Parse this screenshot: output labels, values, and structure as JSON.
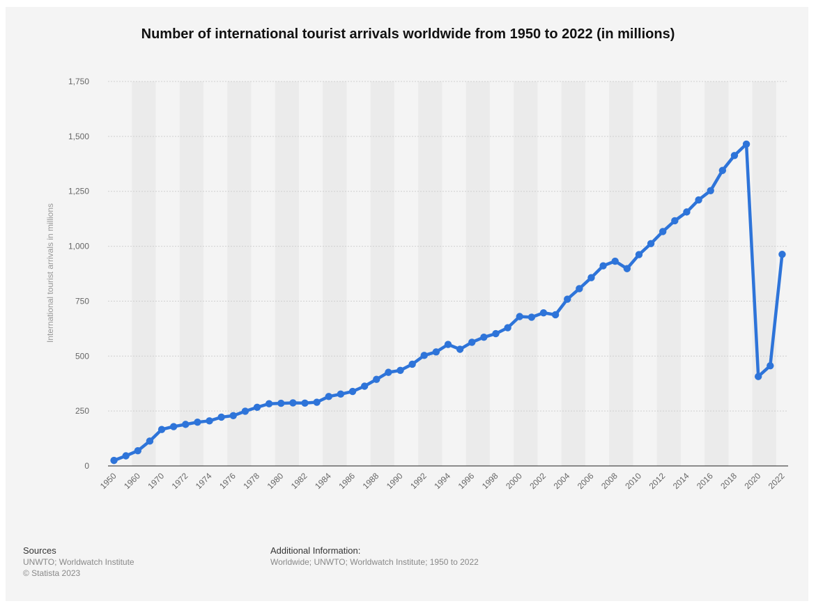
{
  "title": "Number of international tourist arrivals worldwide from 1950 to 2022 (in millions)",
  "colors": {
    "line": "#2e74d9",
    "band": "#ebebeb",
    "background": "#f4f4f4",
    "grid": "#cfcfcf"
  },
  "chart_data": {
    "type": "line",
    "title": "Number of international tourist arrivals worldwide from 1950 to 2022 (in millions)",
    "xlabel": "",
    "ylabel": "International tourist arrivals in millions",
    "ylim": [
      0,
      1750
    ],
    "yticks": [
      0,
      250,
      500,
      750,
      1000,
      1250,
      1500,
      1750
    ],
    "ytick_labels": [
      "0",
      "250",
      "500",
      "750",
      "1,000",
      "1,250",
      "1,500",
      "1,750"
    ],
    "categories": [
      "1950",
      "1955",
      "1960",
      "1965",
      "1970",
      "1971",
      "1972",
      "1973",
      "1974",
      "1975",
      "1976",
      "1977",
      "1978",
      "1979",
      "1980",
      "1981",
      "1982",
      "1983",
      "1984",
      "1985",
      "1986",
      "1987",
      "1988",
      "1989",
      "1990",
      "1991",
      "1992",
      "1993",
      "1994",
      "1995",
      "1996",
      "1997",
      "1998",
      "1999",
      "2000",
      "2001",
      "2002",
      "2003",
      "2004",
      "2005",
      "2006",
      "2007",
      "2008",
      "2009",
      "2010",
      "2011",
      "2012",
      "2013",
      "2014",
      "2015",
      "2016",
      "2017",
      "2018",
      "2019",
      "2020",
      "2021",
      "2022"
    ],
    "xtick_labels": [
      "1950",
      "1960",
      "1970",
      "1972",
      "1974",
      "1976",
      "1978",
      "1980",
      "1982",
      "1984",
      "1986",
      "1988",
      "1990",
      "1992",
      "1994",
      "1996",
      "1998",
      "2000",
      "2002",
      "2004",
      "2006",
      "2008",
      "2010",
      "2012",
      "2014",
      "2016",
      "2018",
      "2020",
      "2022"
    ],
    "series": [
      {
        "values": [
          25,
          46,
          69,
          113,
          166,
          179,
          189,
          199,
          205,
          222,
          229,
          249,
          267,
          283,
          285,
          287,
          286,
          290,
          316,
          327,
          339,
          363,
          394,
          426,
          435,
          463,
          503,
          519,
          553,
          531,
          563,
          586,
          602,
          629,
          680,
          677,
          697,
          688,
          759,
          807,
          857,
          911,
          932,
          898,
          962,
          1012,
          1067,
          1116,
          1156,
          1211,
          1253,
          1345,
          1413,
          1465,
          407,
          456,
          963
        ]
      }
    ],
    "grid": true,
    "legend": "none"
  },
  "footer": {
    "sources_heading": "Sources",
    "sources_line": "UNWTO; Worldwatch Institute",
    "copyright": "© Statista 2023",
    "info_heading": "Additional Information:",
    "info_line": "Worldwide; UNWTO; Worldwatch Institute; 1950 to 2022"
  }
}
